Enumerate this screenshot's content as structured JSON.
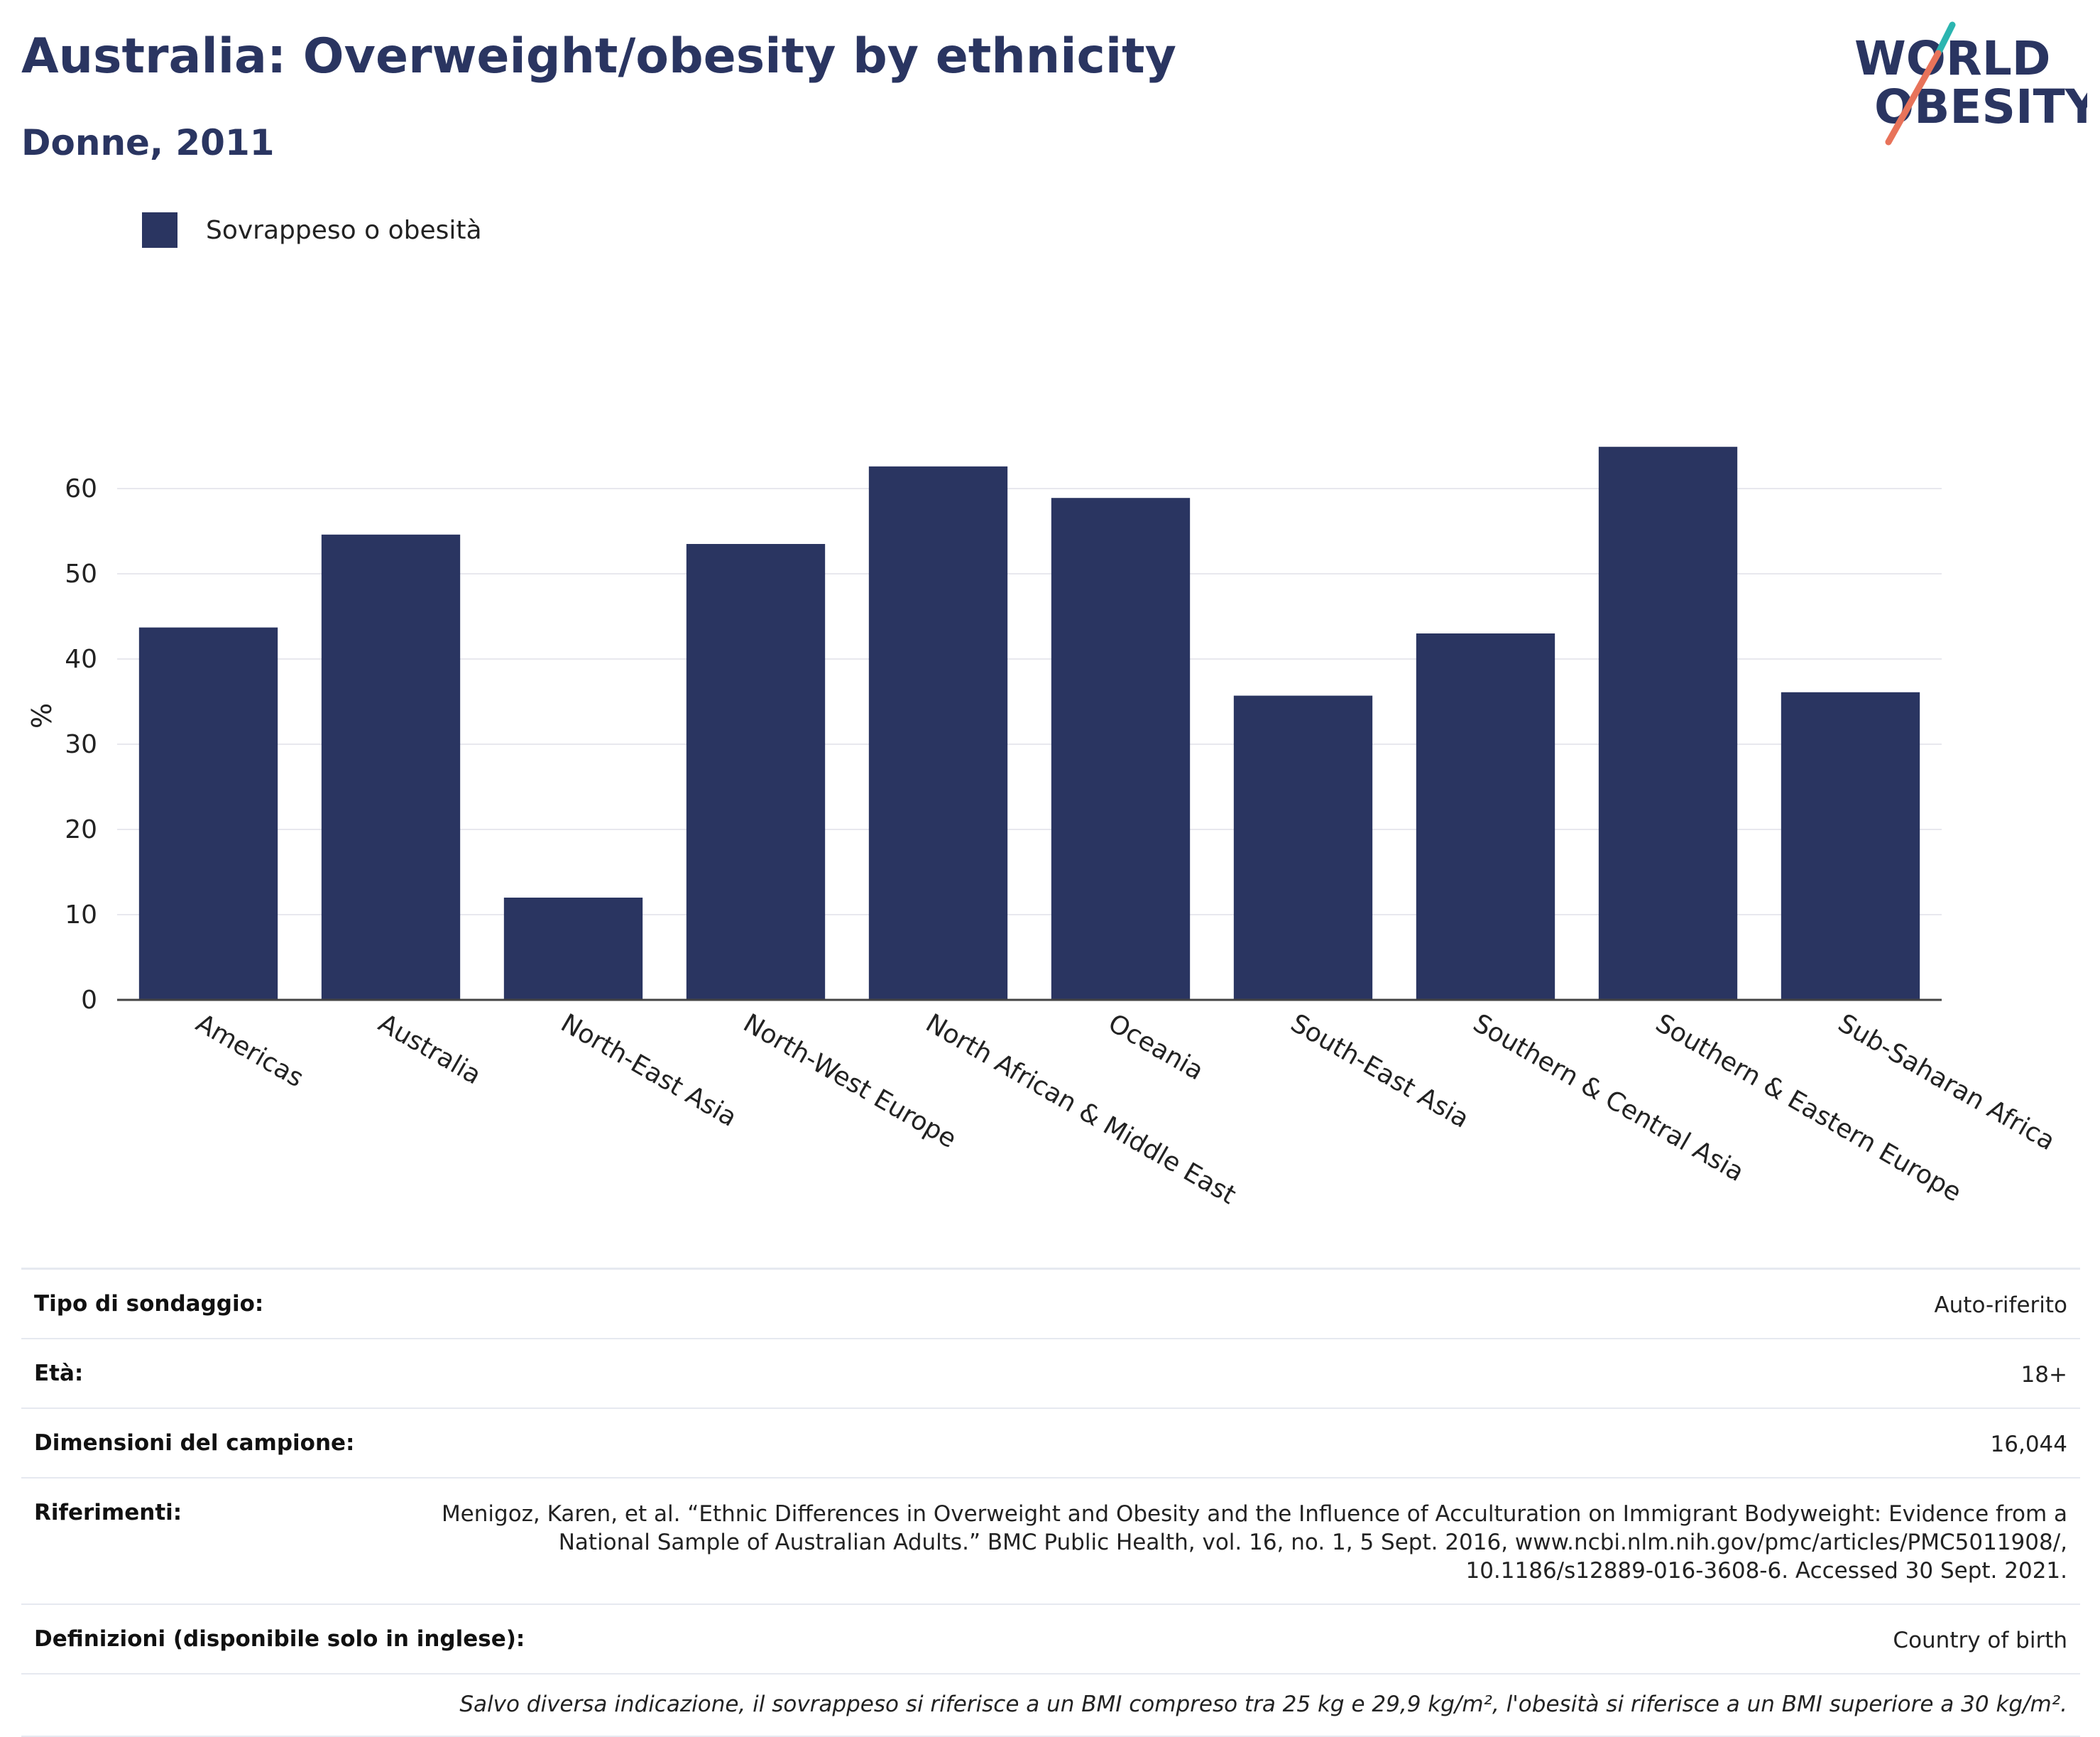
{
  "header": {
    "title": "Australia: Overweight/obesity by ethnicity",
    "subtitle": "Donne, 2011"
  },
  "logo": {
    "line1": "WORLD",
    "line2": "OBESITY",
    "accent_teal": "#2bb5b0",
    "accent_coral": "#e8735a",
    "text_color": "#2a3561"
  },
  "legend": {
    "label": "Sovrappeso o obesità",
    "color": "#2a3561"
  },
  "chart_data": {
    "type": "bar",
    "categories": [
      "Americas",
      "Australia",
      "North-East Asia",
      "North-West Europe",
      "North African & Middle East",
      "Oceania",
      "South-East Asia",
      "Southern & Central Asia",
      "Southern & Eastern Europe",
      "Sub-Saharan Africa"
    ],
    "series": [
      {
        "name": "Sovrappeso o obesità",
        "values": [
          43.7,
          54.6,
          12.0,
          53.5,
          62.6,
          58.9,
          35.7,
          43.0,
          64.9,
          36.1
        ],
        "color": "#2a3561"
      }
    ],
    "ylabel": "%",
    "ylim": [
      0,
      70
    ],
    "yticks": [
      0,
      10,
      20,
      30,
      40,
      50,
      60
    ],
    "grid": true,
    "legend_position": "top-left"
  },
  "info": {
    "rows": [
      {
        "key": "Tipo di sondaggio:",
        "value": "Auto-riferito"
      },
      {
        "key": "Età:",
        "value": "18+"
      },
      {
        "key": "Dimensioni del campione:",
        "value": "16,044"
      },
      {
        "key": "Riferimenti:",
        "value": "Menigoz, Karen, et al. “Ethnic Differences in Overweight and Obesity and the Influence of Acculturation on Immigrant Bodyweight: Evidence from a National Sample of Australian Adults.” BMC Public Health, vol. 16, no. 1, 5 Sept. 2016, www.ncbi.nlm.nih.gov/pmc/articles/PMC5011908/, 10.1186/s12889-016-3608-6. Accessed 30 Sept. 2021."
      },
      {
        "key": "Definizioni (disponibile solo in inglese):",
        "value": "Country of birth"
      }
    ],
    "note": "Salvo diversa indicazione, il sovrappeso si riferisce a un BMI compreso tra 25 kg e 29,9 kg/m², l'obesità si riferisce a un BMI superiore a 30 kg/m²."
  }
}
